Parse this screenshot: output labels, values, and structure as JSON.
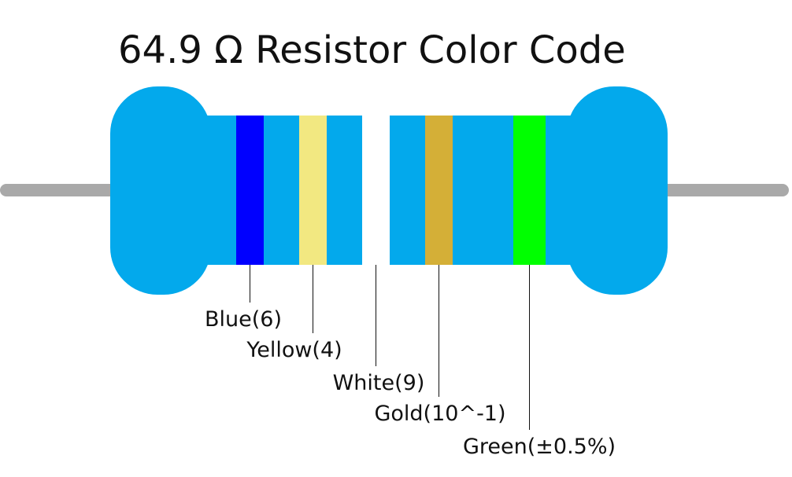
{
  "title": "64.9 Ω Resistor Color Code",
  "bands": [
    {
      "label": "Blue(6)",
      "color": "#0000ff"
    },
    {
      "label": "Yellow(4)",
      "color": "#f2e881"
    },
    {
      "label": "White(9)",
      "color": "#ffffff"
    },
    {
      "label": "Gold(10^-1)",
      "color": "#d4af37"
    },
    {
      "label": "Green(±0.5%)",
      "color": "#00ff00"
    }
  ]
}
